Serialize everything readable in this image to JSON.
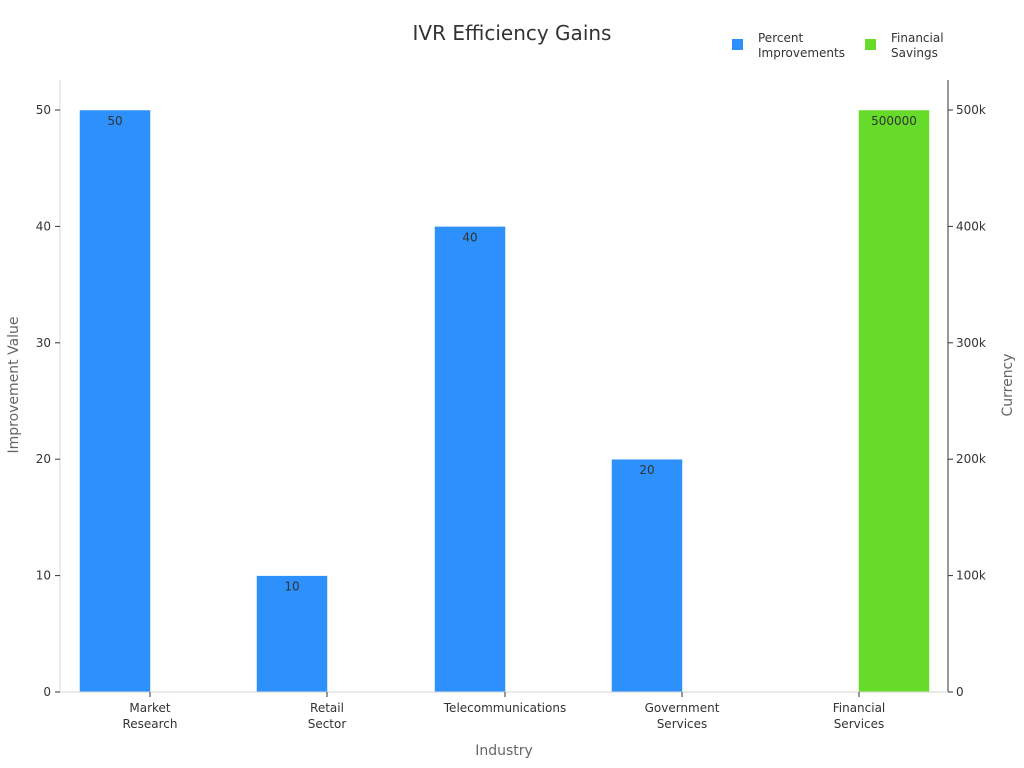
{
  "chart_data": {
    "type": "bar",
    "title": "IVR Efficiency Gains",
    "xlabel": "Industry",
    "ylabel": "Improvement Value",
    "y2label": "Currency",
    "categories": [
      [
        "Market",
        "Research"
      ],
      [
        "Retail",
        "Sector"
      ],
      [
        "Telecommunications"
      ],
      [
        "Government",
        "Services"
      ],
      [
        "Financial",
        "Services"
      ]
    ],
    "series": [
      {
        "name": "Percent Improvements",
        "legend_lines": [
          "Percent",
          "Improvements"
        ],
        "color": "#2e90fa",
        "axis": "left",
        "values": [
          50,
          10,
          40,
          20,
          null
        ],
        "labels": [
          "50",
          "10",
          "40",
          "20",
          ""
        ]
      },
      {
        "name": "Financial Savings",
        "legend_lines": [
          "Financial",
          "Savings"
        ],
        "color": "#66db2a",
        "axis": "right",
        "values": [
          null,
          null,
          null,
          null,
          500000
        ],
        "labels": [
          "",
          "",
          "",
          "",
          "500000"
        ]
      }
    ],
    "ylim": [
      0,
      50
    ],
    "y_ticks": [
      "0",
      "10",
      "20",
      "30",
      "40",
      "50"
    ],
    "y2lim": [
      0,
      500000
    ],
    "y2_ticks": [
      "0",
      "100k",
      "200k",
      "300k",
      "400k",
      "500k"
    ],
    "legend_position": "top-right",
    "grid": false
  }
}
